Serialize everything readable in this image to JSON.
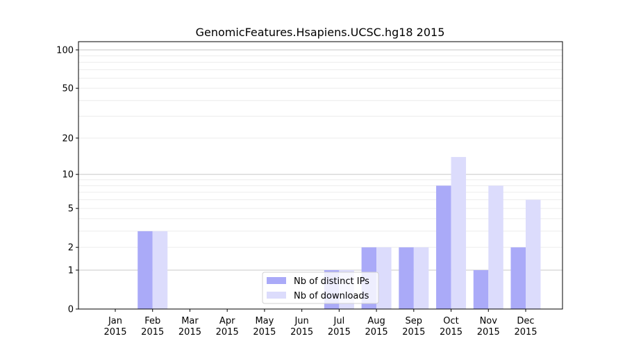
{
  "chart_data": {
    "type": "bar",
    "title": "GenomicFeatures.Hsapiens.UCSC.hg18 2015",
    "xlabel": "",
    "ylabel": "",
    "yscale": "log(1+y)",
    "ylim": [
      0,
      116
    ],
    "yticks": [
      0,
      1,
      2,
      5,
      10,
      20,
      50,
      100
    ],
    "grid": true,
    "legend_position": "bottom-center",
    "categories": [
      [
        "Jan",
        "2015"
      ],
      [
        "Feb",
        "2015"
      ],
      [
        "Mar",
        "2015"
      ],
      [
        "Apr",
        "2015"
      ],
      [
        "May",
        "2015"
      ],
      [
        "Jun",
        "2015"
      ],
      [
        "Jul",
        "2015"
      ],
      [
        "Aug",
        "2015"
      ],
      [
        "Sep",
        "2015"
      ],
      [
        "Oct",
        "2015"
      ],
      [
        "Nov",
        "2015"
      ],
      [
        "Dec",
        "2015"
      ]
    ],
    "series": [
      {
        "name": "Nb of distinct IPs",
        "color": "#aaaaf8",
        "values": [
          0,
          3,
          0,
          0,
          0,
          0,
          1,
          2,
          2,
          8,
          1,
          2
        ]
      },
      {
        "name": "Nb of downloads",
        "color": "#dcdcfc",
        "values": [
          0,
          3,
          0,
          0,
          0,
          0,
          1,
          2,
          2,
          14,
          8,
          6
        ]
      }
    ]
  }
}
